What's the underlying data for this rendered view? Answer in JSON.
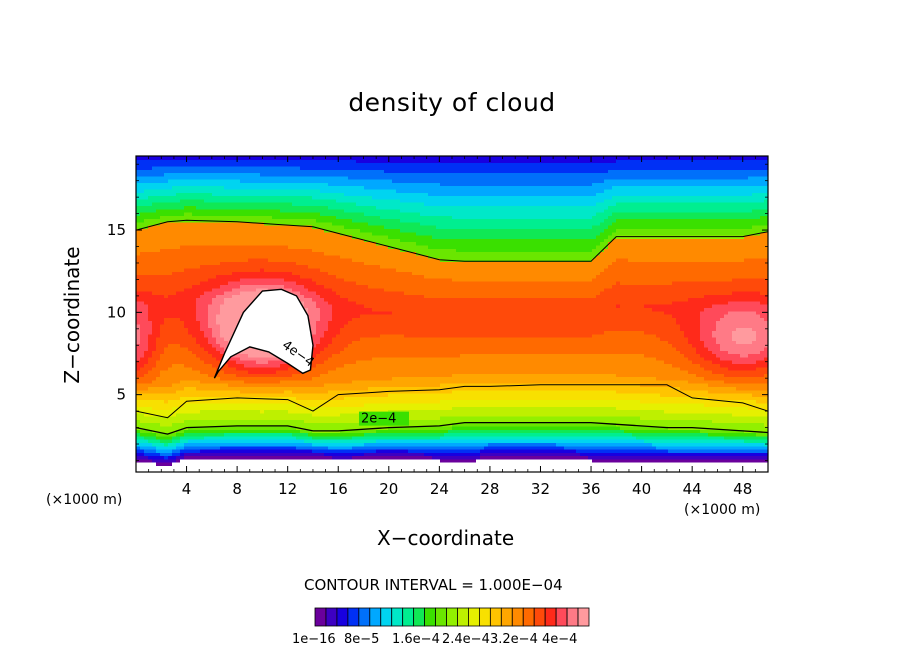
{
  "chart_data": {
    "type": "heatmap",
    "title": "density of cloud",
    "xlabel": "X−coordinate",
    "ylabel": "Z−coordinate",
    "x_unit": "(×1000 m)",
    "xlim": [
      0,
      50
    ],
    "ylim": [
      0.3,
      19.5
    ],
    "x_ticks": [
      "4",
      "8",
      "12",
      "16",
      "20",
      "24",
      "28",
      "32",
      "36",
      "40",
      "44",
      "48"
    ],
    "y_ticks": [
      "5",
      "10",
      "15"
    ],
    "contour_interval_text": "CONTOUR INTERVAL = 1.000E−04",
    "contour_interval": 0.0001,
    "contour_line_labels": [
      "4e−4",
      "2e−4"
    ],
    "colorbar": {
      "labels": [
        "1e−16",
        "8e−5",
        "1.6e−4",
        "2.4e−4",
        "3.2e−4",
        "4e−4"
      ],
      "colors": [
        "#6a009c",
        "#3d00c2",
        "#1800e0",
        "#0030f5",
        "#0070fa",
        "#00a8ff",
        "#00d4f0",
        "#00e8c8",
        "#00ee90",
        "#10e855",
        "#3ae000",
        "#6ae600",
        "#92f000",
        "#bef000",
        "#e6f000",
        "#f8e000",
        "#ffc400",
        "#ffa600",
        "#ff8a00",
        "#ff6a00",
        "#ff4a0a",
        "#ff2a1a",
        "#ff4a5a",
        "#ff7a86",
        "#ff9a9e"
      ]
    },
    "x_profile": [
      0,
      2.5,
      4,
      8,
      12,
      14,
      16,
      20,
      24,
      26,
      28,
      32,
      36,
      38,
      42,
      44,
      48,
      50
    ],
    "z_bottom": [
      1.0,
      0.7,
      1.1,
      1.2,
      1.2,
      1.2,
      1.0,
      1.2,
      1.0,
      0.9,
      1.1,
      1.1,
      1.0,
      1.0,
      0.9,
      0.9,
      1.0,
      1.0
    ],
    "contour_2e4_z": [
      3.0,
      2.6,
      3.0,
      3.1,
      3.1,
      2.8,
      2.8,
      3.0,
      3.1,
      3.3,
      3.3,
      3.3,
      3.3,
      3.2,
      3.0,
      3.0,
      2.8,
      2.7
    ],
    "contour_low_top_z": [
      4.0,
      3.6,
      4.6,
      4.8,
      4.7,
      4.0,
      5.0,
      5.2,
      5.3,
      5.5,
      5.5,
      5.6,
      5.6,
      5.6,
      5.6,
      4.8,
      4.5,
      4.0
    ],
    "contour_upper_z": [
      15.0,
      15.5,
      15.6,
      15.5,
      15.3,
      15.2,
      14.8,
      14.0,
      13.2,
      13.1,
      13.1,
      13.1,
      13.1,
      14.6,
      14.6,
      14.6,
      14.6,
      14.9
    ],
    "max_contour_4e4": {
      "x": [
        6.2,
        7.0,
        8.5,
        10.0,
        11.5,
        12.7,
        13.6,
        14.0,
        13.8,
        13.2,
        12.0,
        10.5,
        9.0,
        7.5,
        6.5,
        6.2
      ],
      "z": [
        6.0,
        7.5,
        10.0,
        11.3,
        11.4,
        11.0,
        9.8,
        8.0,
        6.5,
        6.3,
        6.9,
        7.6,
        7.9,
        7.3,
        6.4,
        6.0
      ]
    }
  }
}
